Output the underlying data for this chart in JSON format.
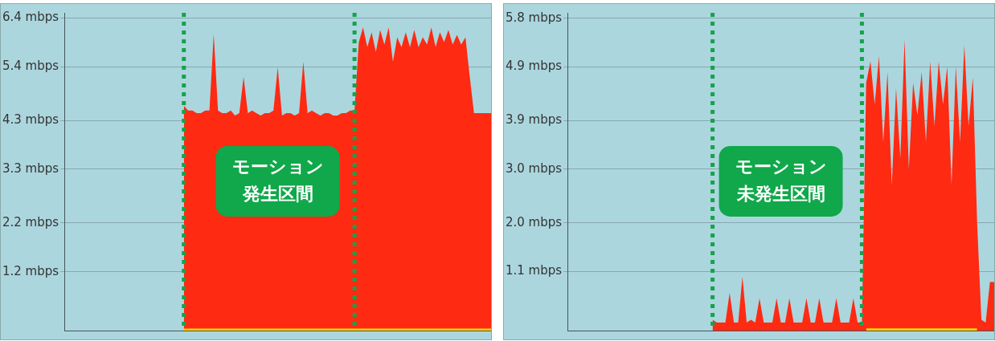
{
  "chart_data": [
    {
      "type": "area",
      "ylim": [
        0,
        6.5
      ],
      "categories": [
        null,
        null,
        null,
        null,
        null,
        null,
        null,
        null,
        null,
        null,
        null,
        null,
        null,
        null,
        null,
        null,
        null,
        null,
        null,
        null,
        null,
        null,
        null,
        null,
        null,
        null,
        null,
        null,
        null,
        null,
        null,
        null,
        null,
        null,
        null,
        null,
        null,
        null,
        null,
        null,
        null,
        null,
        null,
        null,
        null,
        null,
        null,
        null,
        null,
        null,
        null,
        null,
        null,
        null,
        null,
        null,
        null,
        null,
        null,
        null,
        null,
        null,
        null,
        null,
        null,
        null,
        null,
        null,
        null,
        null,
        null,
        null,
        null,
        null,
        null,
        null,
        null,
        null,
        null,
        null,
        null,
        null,
        null,
        null,
        null,
        null,
        null,
        null,
        null,
        null,
        null,
        null,
        null,
        null,
        null,
        null,
        null,
        null,
        null,
        null,
        null
      ],
      "yticks": [
        {
          "value": 1.2,
          "label": "1.2 mbps"
        },
        {
          "value": 2.2,
          "label": "2.2 mbps"
        },
        {
          "value": 3.3,
          "label": "3.3 mbps"
        },
        {
          "value": 4.3,
          "label": "4.3 mbps"
        },
        {
          "value": 5.4,
          "label": "5.4 mbps"
        },
        {
          "value": 6.4,
          "label": "6.4 mbps"
        }
      ],
      "grid": "y",
      "tick_labels": "y",
      "legend": false,
      "marker": "none",
      "series": [
        {
          "color": "#ff2a12",
          "values": [
            null,
            null,
            null,
            null,
            null,
            null,
            null,
            null,
            null,
            null,
            null,
            null,
            null,
            null,
            null,
            null,
            null,
            null,
            null,
            null,
            null,
            null,
            null,
            null,
            null,
            null,
            null,
            null,
            4.6,
            4.5,
            4.5,
            4.45,
            4.45,
            4.5,
            4.5,
            6.07,
            4.5,
            4.45,
            4.45,
            4.5,
            4.4,
            4.45,
            5.19,
            4.45,
            4.5,
            4.45,
            4.4,
            4.45,
            4.45,
            4.5,
            5.39,
            4.4,
            4.45,
            4.45,
            4.4,
            4.45,
            5.5,
            4.45,
            4.5,
            4.45,
            4.4,
            4.45,
            4.45,
            4.4,
            4.4,
            4.45,
            4.45,
            4.5,
            4.5,
            5.9,
            6.2,
            5.8,
            6.1,
            5.7,
            6.15,
            5.85,
            6.2,
            5.5,
            6.0,
            5.8,
            6.1,
            5.8,
            6.15,
            5.8,
            6.0,
            5.85,
            6.2,
            5.8,
            6.1,
            5.9,
            6.15,
            5.85,
            6.05,
            5.85,
            6.0,
            5.2,
            4.45,
            4.45,
            4.45,
            4.45,
            4.45
          ]
        },
        {
          "color": "#ffd400",
          "values": [
            null,
            null,
            null,
            null,
            null,
            null,
            null,
            null,
            null,
            null,
            null,
            null,
            null,
            null,
            null,
            null,
            null,
            null,
            null,
            null,
            null,
            null,
            null,
            null,
            null,
            null,
            null,
            null,
            0.04,
            0.04,
            0.04,
            0.04,
            0.04,
            0.04,
            0.04,
            0.04,
            0.04,
            0.04,
            0.04,
            0.04,
            0.04,
            0.04,
            0.04,
            0.04,
            0.04,
            0.04,
            0.04,
            0.04,
            0.04,
            0.04,
            0.04,
            0.04,
            0.04,
            0.04,
            0.04,
            0.04,
            0.04,
            0.04,
            0.04,
            0.04,
            0.04,
            0.04,
            0.04,
            0.04,
            0.04,
            0.04,
            0.04,
            0.04,
            0.04,
            0.04,
            0.04,
            0.04,
            0.04,
            0.04,
            0.04,
            0.04,
            0.04,
            0.04,
            0.04,
            0.04,
            0.04,
            0.04,
            0.04,
            0.04,
            0.04,
            0.04,
            0.04,
            0.04,
            0.04,
            0.04,
            0.04,
            0.04,
            0.04,
            0.04,
            0.04,
            0.04,
            0.04,
            0.04,
            0.04,
            0.04,
            0.04
          ]
        }
      ],
      "annotations": [
        "モーション発生区間"
      ]
    },
    {
      "type": "area",
      "ylim": [
        0,
        5.9
      ],
      "categories": [
        null,
        null,
        null,
        null,
        null,
        null,
        null,
        null,
        null,
        null,
        null,
        null,
        null,
        null,
        null,
        null,
        null,
        null,
        null,
        null,
        null,
        null,
        null,
        null,
        null,
        null,
        null,
        null,
        null,
        null,
        null,
        null,
        null,
        null,
        null,
        null,
        null,
        null,
        null,
        null,
        null,
        null,
        null,
        null,
        null,
        null,
        null,
        null,
        null,
        null,
        null,
        null,
        null,
        null,
        null,
        null,
        null,
        null,
        null,
        null,
        null,
        null,
        null,
        null,
        null,
        null,
        null,
        null,
        null,
        null,
        null,
        null,
        null,
        null,
        null,
        null,
        null,
        null,
        null,
        null,
        null,
        null,
        null,
        null,
        null,
        null,
        null,
        null,
        null,
        null,
        null,
        null,
        null,
        null,
        null,
        null,
        null,
        null,
        null,
        null,
        null
      ],
      "yticks": [
        {
          "value": 1.1,
          "label": "1.1 mbps"
        },
        {
          "value": 2.0,
          "label": "2.0 mbps"
        },
        {
          "value": 3.0,
          "label": "3.0 mbps"
        },
        {
          "value": 3.9,
          "label": "3.9 mbps"
        },
        {
          "value": 4.9,
          "label": "4.9 mbps"
        },
        {
          "value": 5.8,
          "label": "5.8 mbps"
        }
      ],
      "grid": "y",
      "tick_labels": "y",
      "legend": false,
      "marker": "none",
      "series": [
        {
          "color": "#ff2a12",
          "values": [
            null,
            null,
            null,
            null,
            null,
            null,
            null,
            null,
            null,
            null,
            null,
            null,
            null,
            null,
            null,
            null,
            null,
            null,
            null,
            null,
            null,
            null,
            null,
            null,
            null,
            null,
            null,
            null,
            null,
            null,
            null,
            null,
            null,
            null,
            0.2,
            0.15,
            0.15,
            0.15,
            0.7,
            0.15,
            0.15,
            1.0,
            0.15,
            0.2,
            0.15,
            0.6,
            0.15,
            0.15,
            0.15,
            0.6,
            0.15,
            0.15,
            0.6,
            0.15,
            0.15,
            0.15,
            0.6,
            0.15,
            0.15,
            0.6,
            0.15,
            0.15,
            0.15,
            0.6,
            0.15,
            0.15,
            0.15,
            0.6,
            0.15,
            0.15,
            4.6,
            5.0,
            4.2,
            5.1,
            3.5,
            4.8,
            2.7,
            4.5,
            3.2,
            5.4,
            3.0,
            4.6,
            4.0,
            4.8,
            3.5,
            5.0,
            3.8,
            5.0,
            4.2,
            4.9,
            2.7,
            4.9,
            3.5,
            5.3,
            3.8,
            4.7,
            2.0,
            0.2,
            0.15,
            0.9,
            0.9
          ]
        },
        {
          "color": "#ffd400",
          "values": [
            null,
            null,
            null,
            null,
            null,
            null,
            null,
            null,
            null,
            null,
            null,
            null,
            null,
            null,
            null,
            null,
            null,
            null,
            null,
            null,
            null,
            null,
            null,
            null,
            null,
            null,
            null,
            null,
            null,
            null,
            null,
            null,
            null,
            null,
            null,
            null,
            null,
            null,
            null,
            null,
            null,
            null,
            null,
            null,
            null,
            null,
            null,
            null,
            null,
            null,
            null,
            null,
            null,
            null,
            null,
            null,
            null,
            null,
            null,
            null,
            null,
            null,
            null,
            null,
            null,
            null,
            null,
            null,
            null,
            null,
            0.04,
            0.04,
            0.04,
            0.04,
            0.04,
            0.04,
            0.04,
            0.04,
            0.04,
            0.04,
            0.04,
            0.04,
            0.04,
            0.04,
            0.04,
            0.04,
            0.04,
            0.04,
            0.04,
            0.04,
            0.04,
            0.04,
            0.04,
            0.04,
            0.04,
            0.04,
            0.04,
            null,
            null,
            null,
            null
          ]
        }
      ],
      "annotations": [
        "モーション未発生区間"
      ]
    }
  ]
}
